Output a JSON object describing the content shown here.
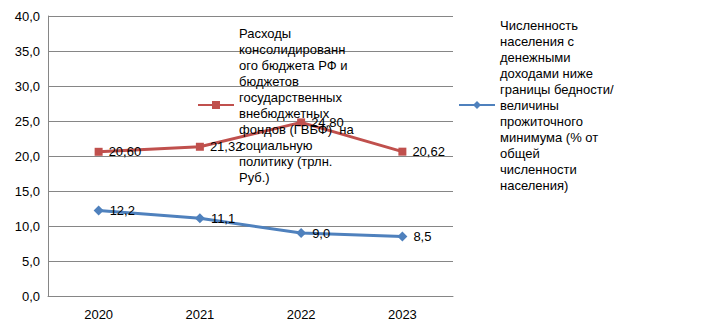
{
  "chart_data": {
    "type": "line",
    "categories": [
      "2020",
      "2021",
      "2022",
      "2023"
    ],
    "series": [
      {
        "name": "Расходы консолидированного бюджета РФ и бюджетов государственных внебюджетных фондов (ГВБФ)  на социальную политику (трлн. Руб.)",
        "color": "#c0504d",
        "marker": "square",
        "values": [
          20.6,
          21.32,
          24.8,
          20.62
        ],
        "value_labels": [
          "20,60",
          "21,32",
          "24,80",
          "20,62"
        ]
      },
      {
        "name": "Численность населения с денежными доходами ниже границы бедности/величины прожиточного минимума (% от общей численности населения)",
        "color": "#4f81bd",
        "marker": "diamond",
        "values": [
          12.2,
          11.1,
          9.0,
          8.5
        ],
        "value_labels": [
          "12,2",
          "11,1",
          "9,0",
          "8,5"
        ]
      }
    ],
    "ylim": [
      0,
      40
    ],
    "yticks": [
      {
        "value": 0,
        "label": "0,0"
      },
      {
        "value": 5,
        "label": "5,0"
      },
      {
        "value": 10,
        "label": "10,0"
      },
      {
        "value": 15,
        "label": "15,0"
      },
      {
        "value": 20,
        "label": "20,0"
      },
      {
        "value": 25,
        "label": "25,0"
      },
      {
        "value": 30,
        "label": "30,0"
      },
      {
        "value": 35,
        "label": "35,0"
      },
      {
        "value": 40,
        "label": "40,0"
      }
    ],
    "grid": true,
    "legend": "right",
    "data_labels": true
  }
}
